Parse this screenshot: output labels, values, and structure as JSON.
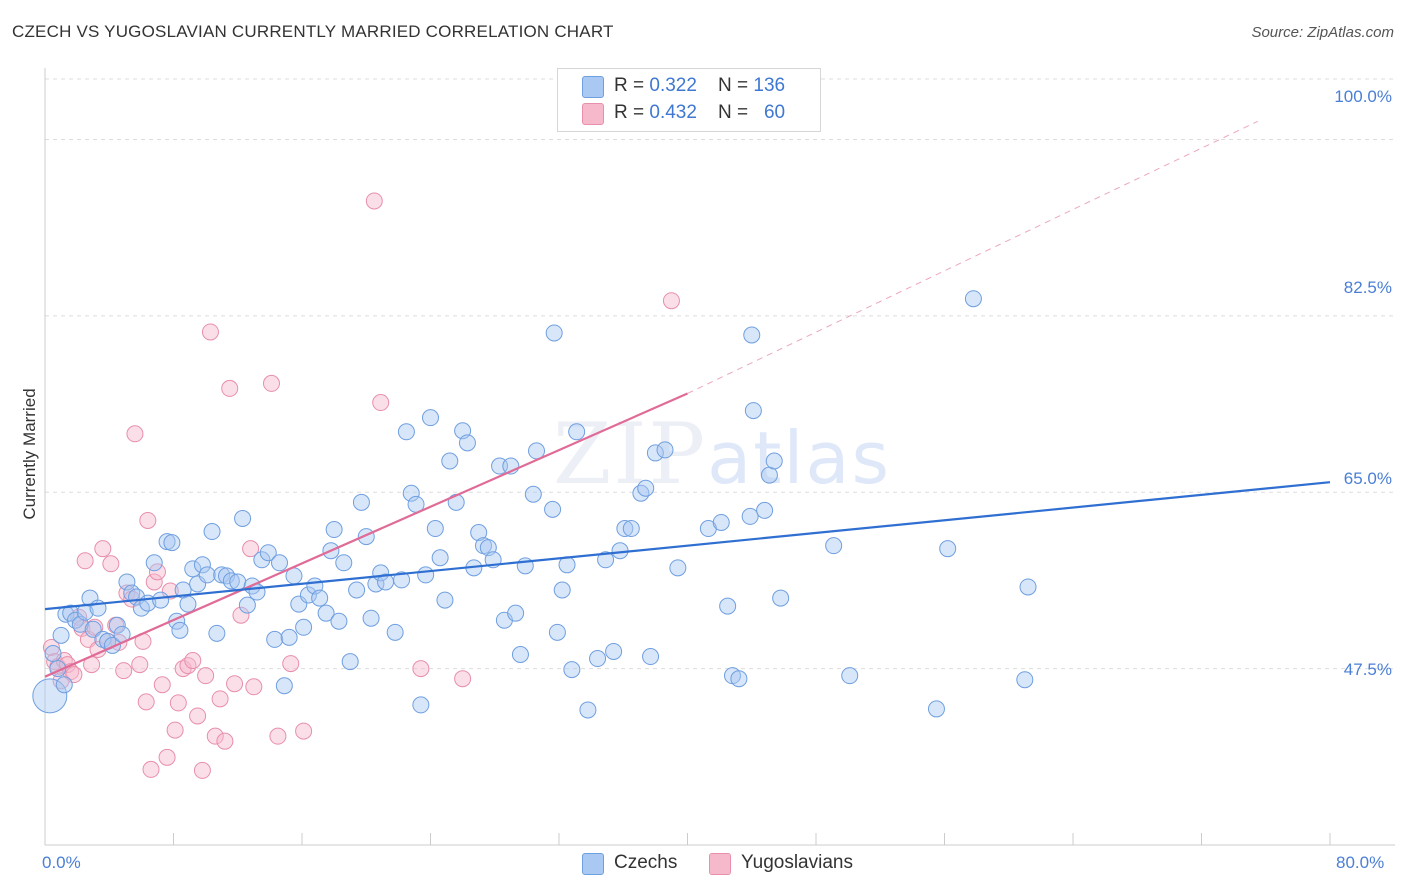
{
  "title": "CZECH VS YUGOSLAVIAN CURRENTLY MARRIED CORRELATION CHART",
  "source": "Source: ZipAtlas.com",
  "watermark": {
    "zip": "ZIP",
    "atlas": "atlas"
  },
  "legend": {
    "czechs": {
      "r_label": "R = ",
      "r_value": "0.322",
      "n_label": "N = ",
      "n_value": "136"
    },
    "yugoslavians": {
      "r_label": "R = ",
      "r_value": "0.432",
      "n_label": "N = ",
      "n_value": "60"
    }
  },
  "bottom_legend": {
    "czechs": "Czechs",
    "yugoslavians": "Yugoslavians"
  },
  "colors": {
    "czech_fill": "#a9c8f2",
    "czech_stroke": "#6f9fe0",
    "czech_line": "#2f6fd1",
    "yugo_fill": "#f6b9cc",
    "yugo_stroke": "#e88fab",
    "yugo_line": "#e06b97",
    "grid": "#dddddd",
    "tick_text": "#4a7fd6"
  },
  "chart_data": {
    "type": "scatter",
    "title": "CZECH VS YUGOSLAVIAN CURRENTLY MARRIED CORRELATION CHART",
    "xlabel": "",
    "ylabel": "Currently Married",
    "xlim": [
      0,
      80
    ],
    "ylim": [
      30,
      106
    ],
    "x_tick_labels": [
      "0.0%",
      "80.0%"
    ],
    "y_ticks": [
      47.5,
      65.0,
      82.5,
      100.0
    ],
    "y_tick_labels": [
      "47.5%",
      "65.0%",
      "82.5%",
      "100.0%"
    ],
    "grid": true,
    "legend_position": "top-center",
    "series": [
      {
        "name": "Czechs",
        "R": 0.322,
        "N": 136,
        "trend": {
          "x": [
            0,
            80
          ],
          "y": [
            53.4,
            66.0
          ]
        },
        "points": [
          [
            0.3,
            44.8
          ],
          [
            0.5,
            49.0
          ],
          [
            0.8,
            47.5
          ],
          [
            1.0,
            50.8
          ],
          [
            1.3,
            52.9
          ],
          [
            1.6,
            53.0
          ],
          [
            1.9,
            52.3
          ],
          [
            2.2,
            51.9
          ],
          [
            2.5,
            53.1
          ],
          [
            2.8,
            54.5
          ],
          [
            3.0,
            51.4
          ],
          [
            3.3,
            53.5
          ],
          [
            3.6,
            50.4
          ],
          [
            3.9,
            50.2
          ],
          [
            4.2,
            49.8
          ],
          [
            4.5,
            51.8
          ],
          [
            4.8,
            50.9
          ],
          [
            5.1,
            56.1
          ],
          [
            5.4,
            55.0
          ],
          [
            5.7,
            54.6
          ],
          [
            6.0,
            53.5
          ],
          [
            6.4,
            54.0
          ],
          [
            6.8,
            58.0
          ],
          [
            7.2,
            54.3
          ],
          [
            7.6,
            60.1
          ],
          [
            7.9,
            60.0
          ],
          [
            8.2,
            52.2
          ],
          [
            8.4,
            51.3
          ],
          [
            8.6,
            55.3
          ],
          [
            8.9,
            53.9
          ],
          [
            9.2,
            57.4
          ],
          [
            9.5,
            55.9
          ],
          [
            9.8,
            57.8
          ],
          [
            10.1,
            56.8
          ],
          [
            10.4,
            61.1
          ],
          [
            10.7,
            51.0
          ],
          [
            11.0,
            56.8
          ],
          [
            11.3,
            56.7
          ],
          [
            11.6,
            56.2
          ],
          [
            12.0,
            56.1
          ],
          [
            12.3,
            62.4
          ],
          [
            12.6,
            53.8
          ],
          [
            12.9,
            55.7
          ],
          [
            13.2,
            55.1
          ],
          [
            13.5,
            58.3
          ],
          [
            13.9,
            59.0
          ],
          [
            14.3,
            50.4
          ],
          [
            14.6,
            58.0
          ],
          [
            14.9,
            45.8
          ],
          [
            15.2,
            50.6
          ],
          [
            15.5,
            56.7
          ],
          [
            15.8,
            53.9
          ],
          [
            16.1,
            51.6
          ],
          [
            16.4,
            54.8
          ],
          [
            16.8,
            55.7
          ],
          [
            17.1,
            54.5
          ],
          [
            17.5,
            53.0
          ],
          [
            17.8,
            59.2
          ],
          [
            18.0,
            61.3
          ],
          [
            18.3,
            52.2
          ],
          [
            18.6,
            58.0
          ],
          [
            19.0,
            48.2
          ],
          [
            19.4,
            55.3
          ],
          [
            19.7,
            64.0
          ],
          [
            20.0,
            60.6
          ],
          [
            20.3,
            52.5
          ],
          [
            20.6,
            55.9
          ],
          [
            20.9,
            57.0
          ],
          [
            21.2,
            56.1
          ],
          [
            21.8,
            51.1
          ],
          [
            22.2,
            56.3
          ],
          [
            22.5,
            71.0
          ],
          [
            22.8,
            64.9
          ],
          [
            23.1,
            63.8
          ],
          [
            23.4,
            43.9
          ],
          [
            23.7,
            56.8
          ],
          [
            24.0,
            72.4
          ],
          [
            24.3,
            61.4
          ],
          [
            24.6,
            58.5
          ],
          [
            24.9,
            54.3
          ],
          [
            25.2,
            68.1
          ],
          [
            25.6,
            64.0
          ],
          [
            26.0,
            71.1
          ],
          [
            26.3,
            69.9
          ],
          [
            26.7,
            57.5
          ],
          [
            27.0,
            61.0
          ],
          [
            27.3,
            59.7
          ],
          [
            27.6,
            59.5
          ],
          [
            27.9,
            58.3
          ],
          [
            28.3,
            67.6
          ],
          [
            28.6,
            52.3
          ],
          [
            29.0,
            67.6
          ],
          [
            29.3,
            53.0
          ],
          [
            29.6,
            48.9
          ],
          [
            29.9,
            57.7
          ],
          [
            30.4,
            64.8
          ],
          [
            30.6,
            69.1
          ],
          [
            31.6,
            63.3
          ],
          [
            31.9,
            51.1
          ],
          [
            32.2,
            55.3
          ],
          [
            32.5,
            57.8
          ],
          [
            32.8,
            47.4
          ],
          [
            33.1,
            71.0
          ],
          [
            33.8,
            43.4
          ],
          [
            34.4,
            48.5
          ],
          [
            34.9,
            58.3
          ],
          [
            35.4,
            49.2
          ],
          [
            35.8,
            59.2
          ],
          [
            36.1,
            61.4
          ],
          [
            36.5,
            61.4
          ],
          [
            37.1,
            64.9
          ],
          [
            37.4,
            65.4
          ],
          [
            37.7,
            48.7
          ],
          [
            38.0,
            68.9
          ],
          [
            38.6,
            69.2
          ],
          [
            39.4,
            57.5
          ],
          [
            41.3,
            61.4
          ],
          [
            42.1,
            62.0
          ],
          [
            42.5,
            53.7
          ],
          [
            42.8,
            46.8
          ],
          [
            43.2,
            46.5
          ],
          [
            43.9,
            62.6
          ],
          [
            44.1,
            73.1
          ],
          [
            44.8,
            63.2
          ],
          [
            45.1,
            66.7
          ],
          [
            45.4,
            68.1
          ],
          [
            45.8,
            54.5
          ],
          [
            49.1,
            59.7
          ],
          [
            50.1,
            46.8
          ],
          [
            55.5,
            43.5
          ],
          [
            56.2,
            59.4
          ],
          [
            57.8,
            84.2
          ],
          [
            61.2,
            55.6
          ],
          [
            61.0,
            46.4
          ],
          [
            31.7,
            80.8
          ],
          [
            44.0,
            80.6
          ],
          [
            1.2,
            45.9
          ]
        ]
      },
      {
        "name": "Yugoslavians",
        "R": 0.432,
        "N": 60,
        "trend": {
          "x": [
            0,
            40
          ],
          "y": [
            46.7,
            74.8
          ]
        },
        "trend_dashed_extension": {
          "x": [
            40,
            75.5
          ],
          "y": [
            74.8,
            101.8
          ]
        },
        "points": [
          [
            0.4,
            49.6
          ],
          [
            0.6,
            48.2
          ],
          [
            0.8,
            47.7
          ],
          [
            1.0,
            46.3
          ],
          [
            1.2,
            48.3
          ],
          [
            1.4,
            47.9
          ],
          [
            1.6,
            47.2
          ],
          [
            1.8,
            46.9
          ],
          [
            2.1,
            52.6
          ],
          [
            2.3,
            51.5
          ],
          [
            2.5,
            58.2
          ],
          [
            2.7,
            50.4
          ],
          [
            2.9,
            47.9
          ],
          [
            3.1,
            51.6
          ],
          [
            3.3,
            49.4
          ],
          [
            3.6,
            59.4
          ],
          [
            3.9,
            50.2
          ],
          [
            4.1,
            57.9
          ],
          [
            4.4,
            51.8
          ],
          [
            4.6,
            50.1
          ],
          [
            4.9,
            47.3
          ],
          [
            5.1,
            55.0
          ],
          [
            5.4,
            54.4
          ],
          [
            5.6,
            70.8
          ],
          [
            5.9,
            47.9
          ],
          [
            6.1,
            50.2
          ],
          [
            6.3,
            44.2
          ],
          [
            6.6,
            37.5
          ],
          [
            6.8,
            56.1
          ],
          [
            7.0,
            57.1
          ],
          [
            7.3,
            45.9
          ],
          [
            7.6,
            38.7
          ],
          [
            7.8,
            55.2
          ],
          [
            8.1,
            41.4
          ],
          [
            8.3,
            44.1
          ],
          [
            8.6,
            47.5
          ],
          [
            8.9,
            47.8
          ],
          [
            9.2,
            48.3
          ],
          [
            9.5,
            42.8
          ],
          [
            9.8,
            37.4
          ],
          [
            10.0,
            46.8
          ],
          [
            10.3,
            80.9
          ],
          [
            10.6,
            40.8
          ],
          [
            10.9,
            44.5
          ],
          [
            11.2,
            40.3
          ],
          [
            11.5,
            75.3
          ],
          [
            11.8,
            46.0
          ],
          [
            12.2,
            52.8
          ],
          [
            12.8,
            59.4
          ],
          [
            13.0,
            45.7
          ],
          [
            14.1,
            75.8
          ],
          [
            14.5,
            40.8
          ],
          [
            15.3,
            48.0
          ],
          [
            16.1,
            41.3
          ],
          [
            20.5,
            93.9
          ],
          [
            20.9,
            73.9
          ],
          [
            23.4,
            47.5
          ],
          [
            26.0,
            46.5
          ],
          [
            39.0,
            84.0
          ],
          [
            6.4,
            62.2
          ]
        ]
      }
    ]
  }
}
